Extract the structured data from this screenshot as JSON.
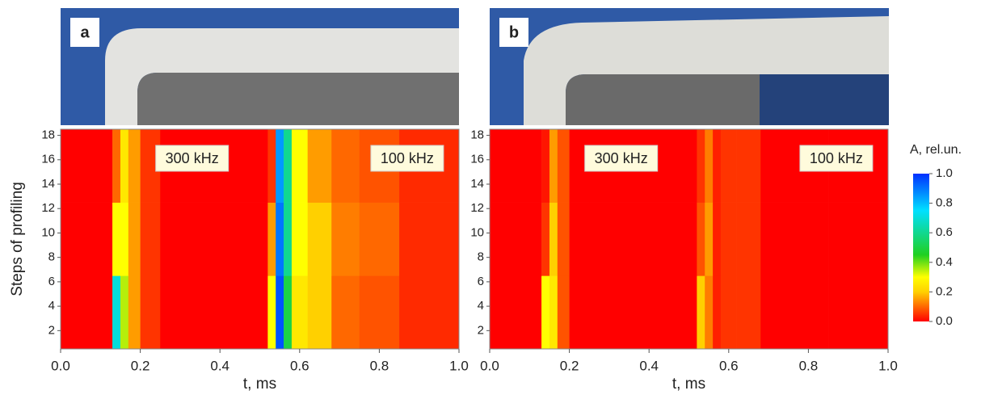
{
  "chart_data": [
    {
      "type": "heatmap",
      "panel_label": "a",
      "xlabel": "t, ms",
      "ylabel": "Steps of profiling",
      "annotations": [
        "300 kHz",
        "100 kHz"
      ],
      "xlim": [
        0,
        1
      ],
      "ylim": [
        0.5,
        18.5
      ],
      "xticks": [
        {
          "value": 0,
          "label": "0.0"
        },
        0.2,
        0.4,
        0.6,
        0.8,
        {
          "value": 1,
          "label": "1.0"
        }
      ],
      "yticks": [
        2,
        4,
        6,
        8,
        10,
        12,
        14,
        16,
        18
      ],
      "xbins": [
        0,
        0.13,
        0.15,
        0.17,
        0.2,
        0.25,
        0.52,
        0.54,
        0.56,
        0.58,
        0.62,
        0.68,
        0.75,
        0.85,
        1
      ],
      "ybins": [
        0.5,
        6.5,
        12.5,
        18.5
      ],
      "values": [
        [
          0,
          0.7,
          0.35,
          0.15,
          0.05,
          0,
          0.3,
          0.95,
          0.5,
          0.25,
          0.2,
          0.1,
          0.08,
          0.04
        ],
        [
          0,
          0.3,
          0.3,
          0.15,
          0.05,
          0,
          0.15,
          0.9,
          0.6,
          0.3,
          0.2,
          0.12,
          0.1,
          0.04
        ],
        [
          0,
          0.1,
          0.25,
          0.15,
          0.05,
          0,
          0.05,
          0.85,
          0.6,
          0.3,
          0.15,
          0.1,
          0.08,
          0.04
        ]
      ]
    },
    {
      "type": "heatmap",
      "panel_label": "b",
      "xlabel": "t, ms",
      "annotations": [
        "300 kHz",
        "100 kHz"
      ],
      "xlim": [
        0,
        1
      ],
      "ylim": [
        0.5,
        18.5
      ],
      "xticks": [
        {
          "value": 0,
          "label": "0.0"
        },
        0.2,
        0.4,
        0.6,
        0.8,
        {
          "value": 1,
          "label": "1.0"
        }
      ],
      "yticks": [
        2,
        4,
        6,
        8,
        10,
        12,
        14,
        16,
        18
      ],
      "xbins": [
        0,
        0.13,
        0.15,
        0.17,
        0.2,
        0.25,
        0.52,
        0.54,
        0.56,
        0.58,
        0.62,
        0.68,
        0.75,
        0.85,
        1
      ],
      "ybins": [
        0.5,
        6.5,
        12.5,
        18.5
      ],
      "values": [
        [
          0,
          0.3,
          0.25,
          0.08,
          0,
          0,
          0.2,
          0.12,
          0.03,
          0.05,
          0.05,
          0,
          0,
          0
        ],
        [
          0,
          0.05,
          0.2,
          0.08,
          0,
          0,
          0.08,
          0.15,
          0.03,
          0.05,
          0.05,
          0,
          0,
          0
        ],
        [
          0,
          0.02,
          0.15,
          0.08,
          0,
          0,
          0.05,
          0.12,
          0.03,
          0.05,
          0.05,
          0,
          0,
          0
        ]
      ],
      "colorbar": {
        "label": "A, rel.un.",
        "lim": [
          0,
          1
        ],
        "ticks": [
          {
            "value": 0,
            "label": "0.0"
          },
          0.2,
          0.4,
          0.6,
          0.8,
          {
            "value": 1,
            "label": "1.0"
          }
        ],
        "colormap": [
          {
            "value": 0,
            "color": "#ff0000"
          },
          {
            "value": 0.2,
            "color": "#ffd000"
          },
          {
            "value": 0.3,
            "color": "#ffff00"
          },
          {
            "value": 0.45,
            "color": "#20d020"
          },
          {
            "value": 0.75,
            "color": "#00e0ff"
          },
          {
            "value": 1,
            "color": "#0030ff"
          }
        ]
      }
    }
  ]
}
